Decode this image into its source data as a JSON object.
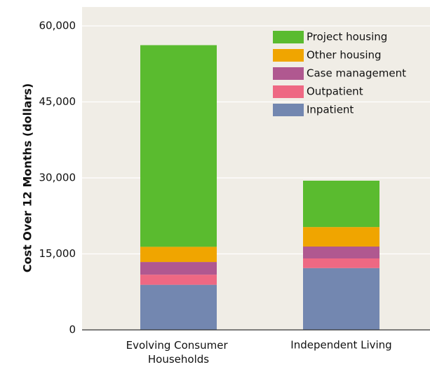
{
  "chart_data": {
    "type": "stacked_bar",
    "ylabel": "Cost Over 12 Months (dollars)",
    "categories": [
      "Evolving Consumer Households",
      "Independent Living"
    ],
    "series": [
      {
        "name": "Inpatient",
        "color": "#7387b0",
        "values": [
          8900,
          12200
        ]
      },
      {
        "name": "Outpatient",
        "color": "#ee6883",
        "values": [
          2000,
          1900
        ]
      },
      {
        "name": "Case management",
        "color": "#b05890",
        "values": [
          2500,
          2350
        ]
      },
      {
        "name": "Other housing",
        "color": "#f0a500",
        "values": [
          3000,
          3850
        ]
      },
      {
        "name": "Project housing",
        "color": "#5abb2f",
        "values": [
          39800,
          9150
        ]
      }
    ],
    "ylim": [
      0,
      60000
    ],
    "yticks": [
      {
        "value": 0,
        "label": "0"
      },
      {
        "value": 15000,
        "label": "15,000"
      },
      {
        "value": 30000,
        "label": "30,000"
      },
      {
        "value": 45000,
        "label": "45,000"
      },
      {
        "value": 60000,
        "label": "60,000"
      }
    ],
    "grid": true,
    "legend": "upper right"
  }
}
